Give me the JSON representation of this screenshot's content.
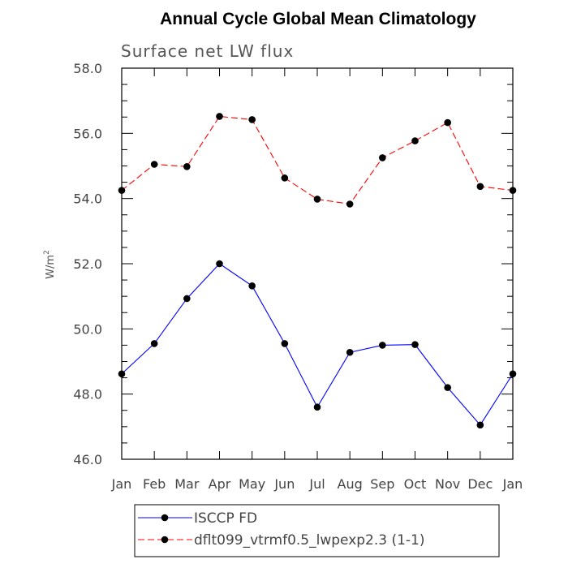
{
  "chart_data": {
    "type": "line",
    "title": "Annual Cycle Global Mean Climatology",
    "subtitle": "Surface net LW flux",
    "ylabel": "W/m",
    "ylabel_superscript": "2",
    "xlabel": "",
    "categories": [
      "Jan",
      "Feb",
      "Mar",
      "Apr",
      "May",
      "Jun",
      "Jul",
      "Aug",
      "Sep",
      "Oct",
      "Nov",
      "Dec",
      "Jan"
    ],
    "ylim": [
      46.0,
      58.0
    ],
    "yticks": [
      "46.0",
      "48.0",
      "50.0",
      "52.0",
      "54.0",
      "56.0",
      "58.0"
    ],
    "grid": false,
    "legend_position": "bottom",
    "series": [
      {
        "name": "ISCCP FD",
        "values": [
          48.62,
          49.55,
          50.93,
          52.0,
          51.32,
          49.55,
          47.6,
          49.28,
          49.5,
          49.52,
          48.2,
          47.05,
          48.62
        ],
        "color": "#0000ff",
        "style": "solid",
        "marker": "filled-circle"
      },
      {
        "name": "dflt099_vtrmf0.5_lwpexp2.3 (1-1)",
        "values": [
          54.25,
          55.05,
          54.98,
          56.52,
          56.42,
          54.63,
          53.98,
          53.83,
          55.25,
          55.77,
          56.33,
          54.37,
          54.25
        ],
        "color": "#ff0000",
        "style": "dashed",
        "marker": "filled-circle"
      }
    ]
  }
}
